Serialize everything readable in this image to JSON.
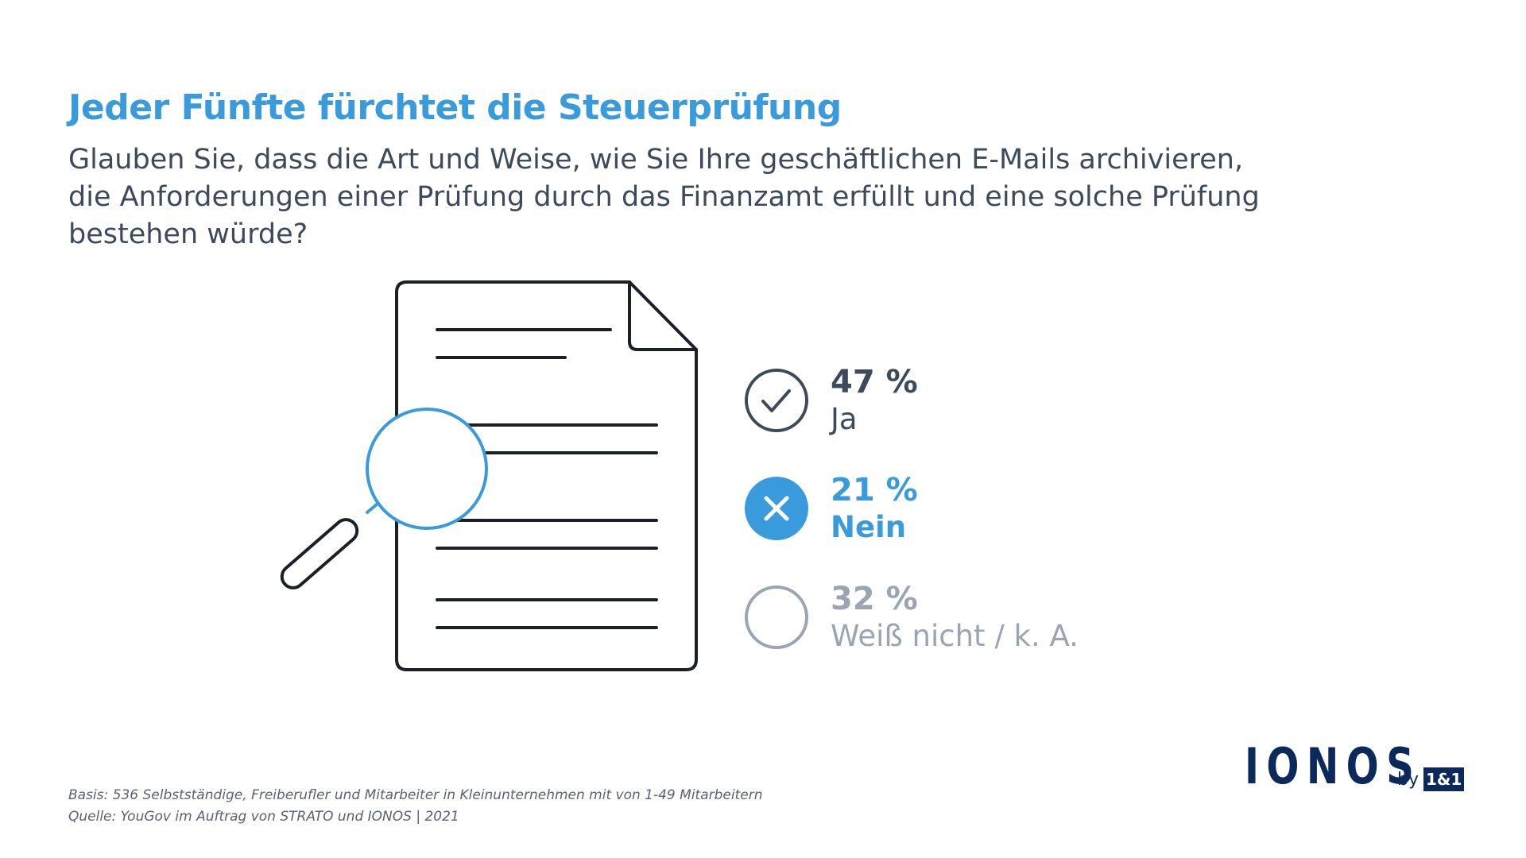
{
  "title": "Jeder Fünfte fürchtet die Steuerprüfung",
  "question": [
    "Glauben Sie, dass die Art und Weise, wie Sie Ihre geschäftlichen E-Mails archivieren,",
    "die Anforderungen einer Prüfung durch das Finanzamt erfüllt und eine solche Prüfung",
    "bestehen würde?"
  ],
  "colors": {
    "accent": "#3a9bdc",
    "dark": "#3d4a5c",
    "muted": "#9aa5b4",
    "icon_dark": "#1b1f26"
  },
  "chart_data": {
    "type": "table",
    "categories": [
      "Ja",
      "Nein",
      "Weiß nicht / k. A."
    ],
    "values": [
      47,
      21,
      32
    ],
    "value_labels": [
      "47 %",
      "21 %",
      "32 %"
    ],
    "icons": [
      "check-circle-icon",
      "x-circle-icon",
      "empty-circle-icon"
    ]
  },
  "footer": {
    "basis": "Basis: 536 Selbstständige, Freiberufler und Mitarbeiter in Kleinunternehmen mit von 1-49 Mitarbeitern",
    "source": "Quelle: YouGov im Auftrag von STRATO und IONOS | 2021"
  },
  "logo": {
    "word": "IONOS",
    "by": "by",
    "brand": "1&1"
  }
}
